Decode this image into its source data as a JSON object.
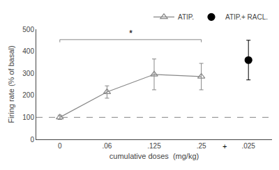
{
  "chart_data": {
    "type": "line",
    "xlabel": "cumulative doses  (mg/kg)",
    "ylabel": "Firing rate (% of basal)",
    "categories": [
      "0",
      ".06",
      ".125",
      ".25",
      ".025"
    ],
    "series": [
      {
        "name": "ATIP.",
        "color": "#888888",
        "marker": "triangle-up-open",
        "line_style": "solid",
        "values": [
          100,
          215,
          295,
          285,
          null
        ],
        "errors": [
          10,
          28,
          70,
          60,
          null
        ]
      },
      {
        "name": "ATIP.+ RACL.",
        "type": "scatter",
        "color": "#000000",
        "marker": "circle",
        "values": [
          null,
          null,
          null,
          null,
          360
        ],
        "errors": [
          null,
          null,
          null,
          null,
          90
        ]
      }
    ],
    "ylim": [
      0,
      500
    ],
    "yticks": [
      0,
      100,
      200,
      300,
      400,
      500
    ],
    "reference_lines": [
      {
        "y": 100,
        "color": "#888888",
        "line_style": "dashed"
      }
    ],
    "annotations": [
      {
        "text": "*",
        "x": [
          "0",
          ".25"
        ],
        "y": 453,
        "color": "#888888"
      },
      {
        "text": "+",
        "x": [
          ".25",
          ".025"
        ]
      }
    ],
    "grid": false,
    "legend": "upper right"
  }
}
